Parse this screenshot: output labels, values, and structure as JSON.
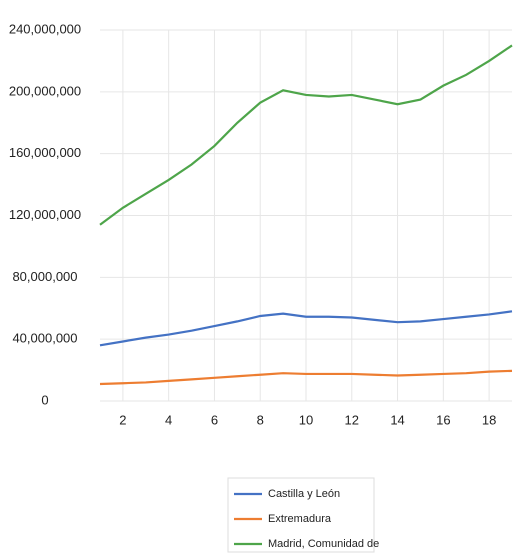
{
  "chart_data": {
    "type": "line",
    "x": [
      1,
      2,
      3,
      4,
      5,
      6,
      7,
      8,
      9,
      10,
      11,
      12,
      13,
      14,
      15,
      16,
      17,
      18,
      19
    ],
    "series": [
      {
        "name": "Castilla y León",
        "color": "#4472c4",
        "values": [
          36000000,
          38500000,
          41000000,
          43000000,
          45500000,
          48500000,
          51500000,
          55000000,
          56500000,
          54500000,
          54500000,
          54000000,
          52500000,
          51000000,
          51500000,
          53000000,
          54500000,
          56000000,
          58000000
        ]
      },
      {
        "name": "Extremadura",
        "color": "#ed7d31",
        "values": [
          11000000,
          11500000,
          12000000,
          13000000,
          14000000,
          15000000,
          16000000,
          17000000,
          18000000,
          17500000,
          17500000,
          17500000,
          17000000,
          16500000,
          17000000,
          17500000,
          18000000,
          19000000,
          19500000
        ]
      },
      {
        "name": "Madrid, Comunidad de",
        "color": "#4ea54a",
        "values": [
          114000000,
          125000000,
          134000000,
          143000000,
          153000000,
          165000000,
          180000000,
          193000000,
          201000000,
          198000000,
          197000000,
          198000000,
          195000000,
          192000000,
          195000000,
          204000000,
          211000000,
          220000000,
          230000000
        ]
      }
    ],
    "xlim": [
      1,
      19
    ],
    "xticks": [
      2,
      4,
      6,
      8,
      10,
      12,
      14,
      16,
      18
    ],
    "ylim": [
      0,
      240000000
    ],
    "yticks": [
      0,
      {
        "value": 40000000,
        "label": "40,000,000"
      },
      {
        "value": 80000000,
        "label": "80,000,000"
      },
      {
        "value": 120000000,
        "label": "120,000,000"
      },
      {
        "value": 160000000,
        "label": "160,000,000"
      },
      {
        "value": 200000000,
        "label": "200,000,000"
      },
      {
        "value": 240000000,
        "label": "240,000,000"
      }
    ],
    "grid": true,
    "legend": "bottom"
  }
}
